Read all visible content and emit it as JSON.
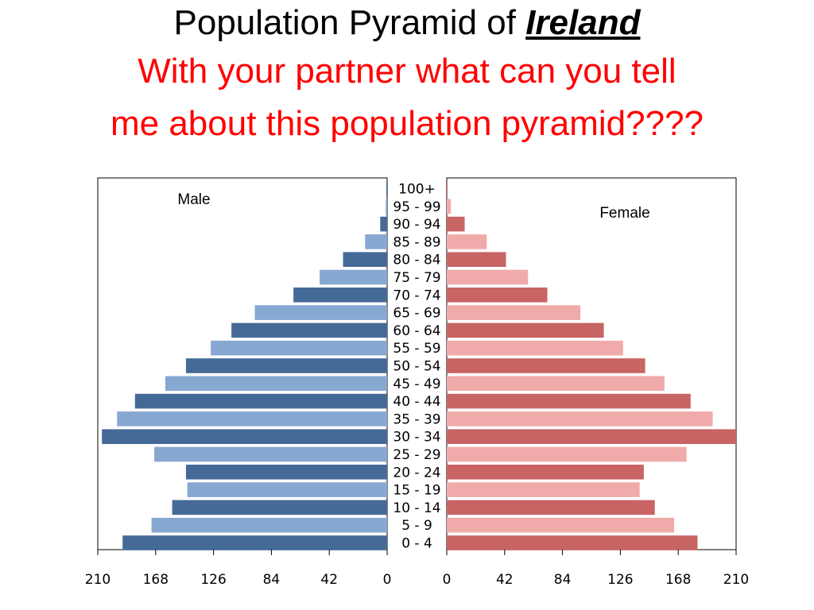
{
  "slide": {
    "title_prefix": "Population Pyramid of ",
    "title_country": "Ireland",
    "prompt_line1": "With your partner what can you tell",
    "prompt_line2": "me about this population pyramid????"
  },
  "chart_data": {
    "type": "bar",
    "orientation": "horizontal",
    "layout": "population-pyramid",
    "categories": [
      "0 - 4",
      "5 - 9",
      "10 - 14",
      "15 - 19",
      "20 - 24",
      "25 - 29",
      "30 - 34",
      "35 - 39",
      "40 - 44",
      "45 - 49",
      "50 - 54",
      "55 - 59",
      "60 - 64",
      "65 - 69",
      "70 - 74",
      "75 - 79",
      "80 - 84",
      "85 - 89",
      "90 - 94",
      "95 - 99",
      "100+"
    ],
    "series": [
      {
        "name": "Male",
        "side": "left",
        "values": [
          192,
          171,
          156,
          145,
          146,
          169,
          207,
          196,
          183,
          161,
          146,
          128,
          113,
          96,
          68,
          49,
          32,
          16,
          5,
          1,
          0.5
        ],
        "colors": [
          "#456a97",
          "#87a8d1"
        ]
      },
      {
        "name": "Female",
        "side": "right",
        "values": [
          182,
          165,
          151,
          140,
          143,
          174,
          210,
          193,
          177,
          158,
          144,
          128,
          114,
          97,
          73,
          59,
          43,
          29,
          13,
          3,
          0.5
        ],
        "colors": [
          "#c86464",
          "#f0aaaa"
        ]
      }
    ],
    "xlim": [
      0,
      210
    ],
    "xticks": [
      210,
      168,
      126,
      84,
      42,
      0
    ],
    "xticks_right": [
      0,
      42,
      84,
      126,
      168,
      210
    ],
    "grid": false
  }
}
